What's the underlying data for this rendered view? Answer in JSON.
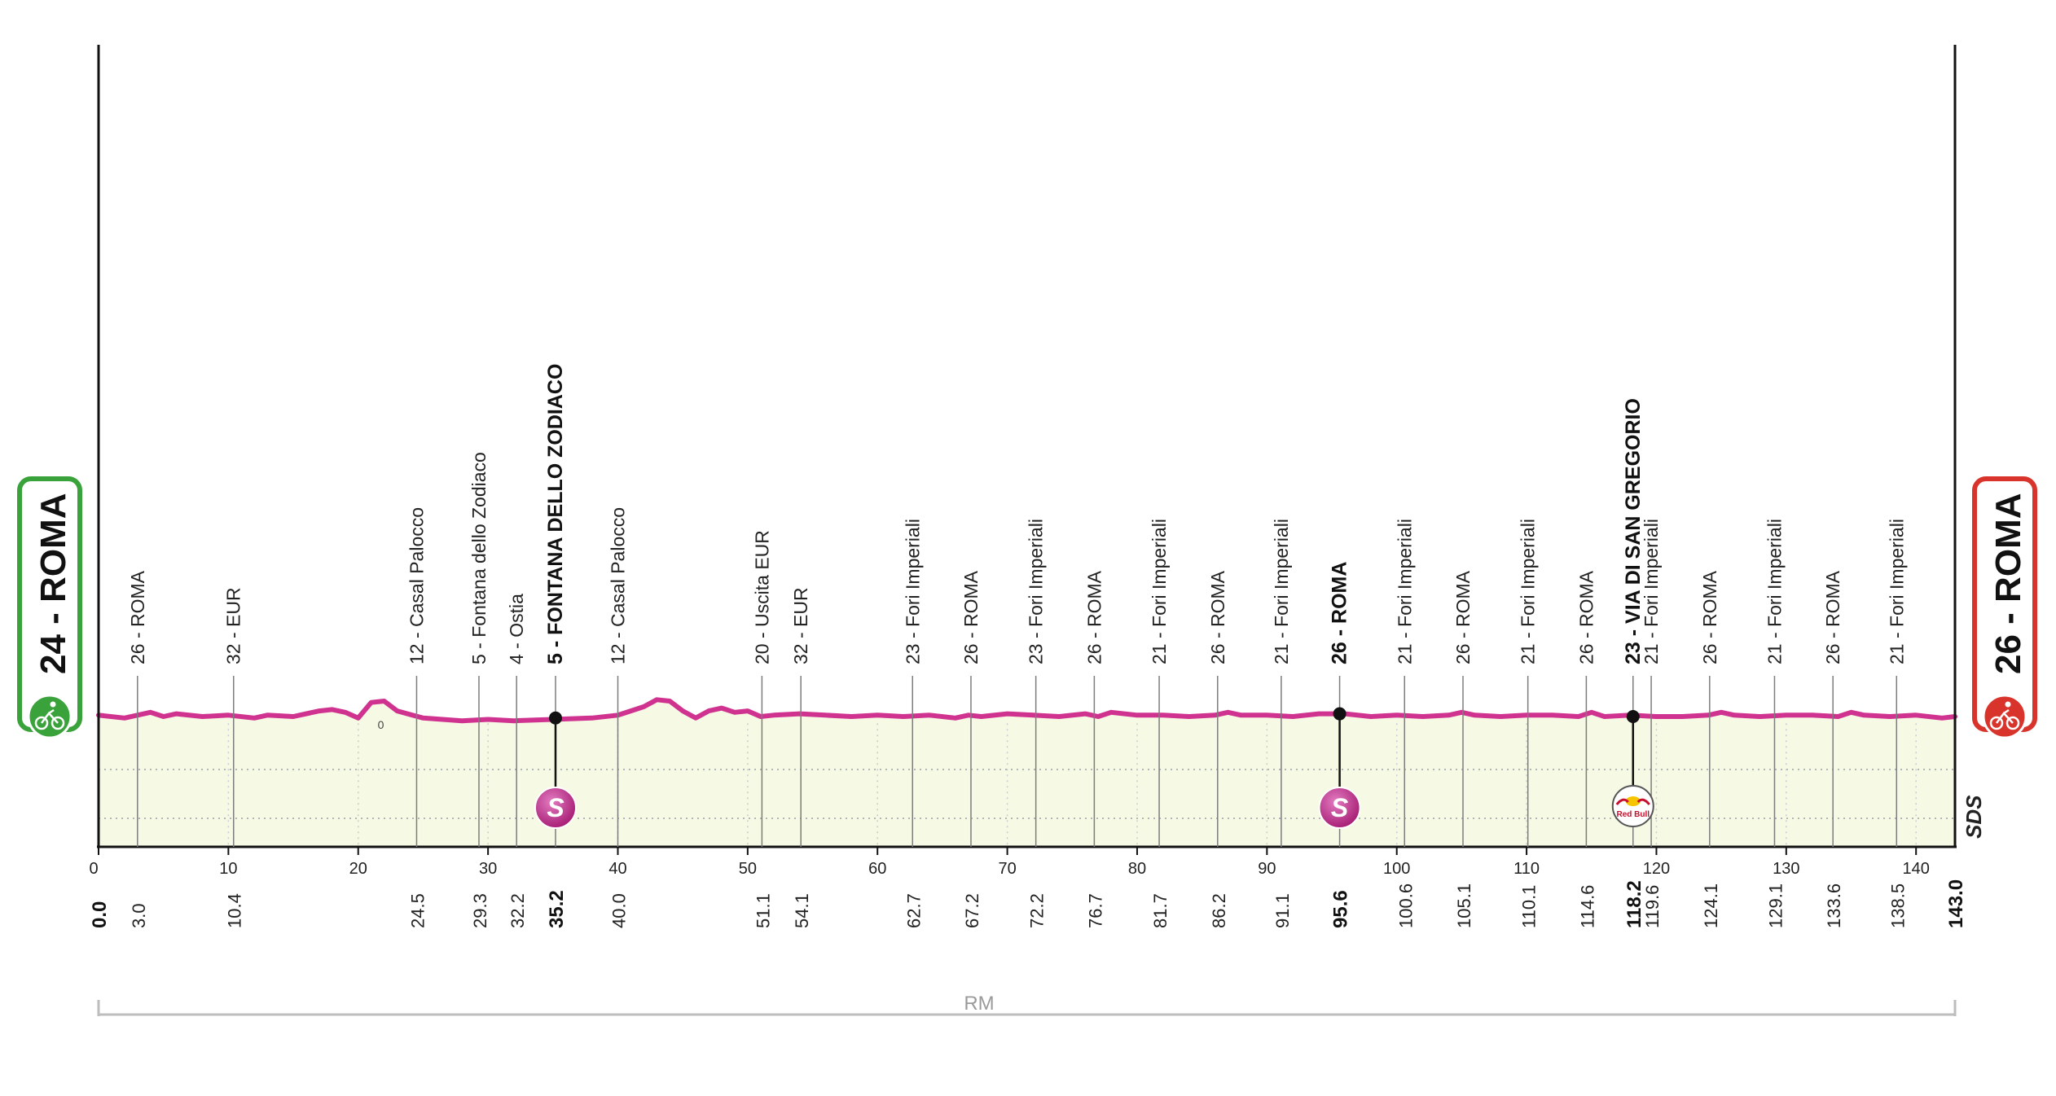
{
  "chart_data": {
    "type": "area",
    "title": "",
    "start": {
      "altitude": "24",
      "name": "ROMA",
      "color": "#3aa23a",
      "icon": "cyclist-start-icon"
    },
    "finish": {
      "altitude": "26",
      "name": "ROMA",
      "color": "#d9342b",
      "icon": "cyclist-finish-icon"
    },
    "xlim": [
      0,
      143.0
    ],
    "x_ticks": [
      0,
      10,
      20,
      30,
      40,
      50,
      60,
      70,
      80,
      90,
      100,
      110,
      120,
      130,
      140
    ],
    "km_markers": [
      {
        "km": 0.0,
        "label": "0.0",
        "bold": true
      },
      {
        "km": 3.0,
        "label": "3.0"
      },
      {
        "km": 10.4,
        "label": "10.4"
      },
      {
        "km": 24.5,
        "label": "24.5"
      },
      {
        "km": 29.3,
        "label": "29.3"
      },
      {
        "km": 32.2,
        "label": "32.2"
      },
      {
        "km": 35.2,
        "label": "35.2",
        "bold": true
      },
      {
        "km": 40.0,
        "label": "40.0"
      },
      {
        "km": 51.1,
        "label": "51.1"
      },
      {
        "km": 54.1,
        "label": "54.1"
      },
      {
        "km": 62.7,
        "label": "62.7"
      },
      {
        "km": 67.2,
        "label": "67.2"
      },
      {
        "km": 72.2,
        "label": "72.2"
      },
      {
        "km": 76.7,
        "label": "76.7"
      },
      {
        "km": 81.7,
        "label": "81.7"
      },
      {
        "km": 86.2,
        "label": "86.2"
      },
      {
        "km": 91.1,
        "label": "91.1"
      },
      {
        "km": 95.6,
        "label": "95.6",
        "bold": true
      },
      {
        "km": 100.6,
        "label": "100.6"
      },
      {
        "km": 105.1,
        "label": "105.1"
      },
      {
        "km": 110.1,
        "label": "110.1"
      },
      {
        "km": 114.6,
        "label": "114.6"
      },
      {
        "km": 118.2,
        "label": "118.2",
        "bold": true
      },
      {
        "km": 119.6,
        "label": "119.6"
      },
      {
        "km": 124.1,
        "label": "124.1"
      },
      {
        "km": 129.1,
        "label": "129.1"
      },
      {
        "km": 133.6,
        "label": "133.6"
      },
      {
        "km": 138.5,
        "label": "138.5"
      },
      {
        "km": 143.0,
        "label": "143.0",
        "bold": true
      }
    ],
    "waypoints": [
      {
        "km": 3.0,
        "label": "26 - ROMA"
      },
      {
        "km": 10.4,
        "label": "32 - EUR"
      },
      {
        "km": 24.5,
        "label": "12 - Casal Palocco"
      },
      {
        "km": 29.3,
        "label": "5 - Fontana dello Zodiaco"
      },
      {
        "km": 32.2,
        "label": "4 - Ostia"
      },
      {
        "km": 35.2,
        "label": "5 - FONTANA DELLO ZODIACO",
        "bold": true
      },
      {
        "km": 40.0,
        "label": "12 - Casal Palocco"
      },
      {
        "km": 51.1,
        "label": "20 - Uscita EUR"
      },
      {
        "km": 54.1,
        "label": "32 - EUR"
      },
      {
        "km": 62.7,
        "label": "23 - Fori Imperiali"
      },
      {
        "km": 67.2,
        "label": "26 - ROMA"
      },
      {
        "km": 72.2,
        "label": "23 - Fori Imperiali"
      },
      {
        "km": 76.7,
        "label": "26 - ROMA"
      },
      {
        "km": 81.7,
        "label": "21 - Fori Imperiali"
      },
      {
        "km": 86.2,
        "label": "26 - ROMA"
      },
      {
        "km": 91.1,
        "label": "21 - Fori Imperiali"
      },
      {
        "km": 95.6,
        "label": "26 - ROMA",
        "bold": true
      },
      {
        "km": 100.6,
        "label": "21 - Fori Imperiali"
      },
      {
        "km": 105.1,
        "label": "26 - ROMA"
      },
      {
        "km": 110.1,
        "label": "21 - Fori Imperiali"
      },
      {
        "km": 114.6,
        "label": "26 - ROMA"
      },
      {
        "km": 118.2,
        "label": "23 - VIA DI SAN GREGORIO",
        "bold": true
      },
      {
        "km": 119.6,
        "label": "21 - Fori Imperiali"
      },
      {
        "km": 124.1,
        "label": "26 - ROMA"
      },
      {
        "km": 129.1,
        "label": "21 - Fori Imperiali"
      },
      {
        "km": 133.6,
        "label": "26 - ROMA"
      },
      {
        "km": 138.5,
        "label": "21 - Fori Imperiali"
      }
    ],
    "sprints": [
      {
        "km": 35.2,
        "type": "intermediate-sprint",
        "symbol": "S"
      },
      {
        "km": 95.6,
        "type": "intermediate-sprint",
        "symbol": "S"
      },
      {
        "km": 118.2,
        "type": "red-bull-km",
        "text": "Red Bull"
      }
    ],
    "altitude_annotations": [
      {
        "km": 21.0,
        "label": "0"
      }
    ],
    "profile": {
      "x": [
        0,
        2,
        4,
        5,
        6,
        8,
        10,
        12,
        13,
        15,
        17,
        18,
        19,
        20,
        21,
        22,
        23,
        25,
        28,
        30,
        32,
        35,
        38,
        40,
        42,
        43,
        44,
        45,
        46,
        47,
        48,
        49,
        50,
        51,
        52,
        54,
        56,
        58,
        60,
        62,
        64,
        66,
        67,
        68,
        70,
        72,
        74,
        76,
        77,
        78,
        80,
        82,
        84,
        86,
        87,
        88,
        90,
        92,
        94,
        96,
        98,
        100,
        102,
        104,
        105,
        106,
        108,
        110,
        112,
        114,
        115,
        116,
        118,
        120,
        122,
        124,
        125,
        126,
        128,
        130,
        132,
        134,
        135,
        136,
        138,
        140,
        142,
        143
      ],
      "y": [
        27,
        25,
        29,
        26,
        28,
        26,
        27,
        25,
        27,
        26,
        30,
        31,
        29,
        25,
        36,
        37,
        30,
        25,
        23,
        24,
        23,
        24,
        25,
        27,
        33,
        38,
        37,
        30,
        25,
        30,
        32,
        29,
        30,
        26,
        27,
        28,
        27,
        26,
        27,
        26,
        27,
        25,
        27,
        26,
        28,
        27,
        26,
        28,
        26,
        29,
        27,
        27,
        26,
        27,
        29,
        27,
        27,
        26,
        28,
        28,
        26,
        27,
        26,
        27,
        29,
        27,
        26,
        27,
        27,
        26,
        29,
        26,
        27,
        26,
        26,
        27,
        29,
        27,
        26,
        27,
        27,
        26,
        29,
        27,
        26,
        27,
        25,
        26
      ]
    },
    "province_bracket": {
      "label": "RM"
    },
    "brand_mark": "SDS",
    "colors": {
      "profile_line": "#d0338f",
      "profile_fill": "#f6f9e4",
      "sprint": "#c2338c"
    }
  }
}
